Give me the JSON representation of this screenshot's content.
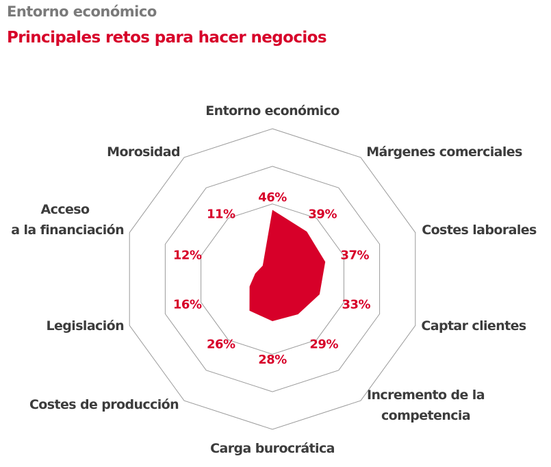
{
  "header": {
    "section": "Entorno económico",
    "title": "Principales retos para hacer negocios"
  },
  "colors": {
    "accent": "#d70029",
    "grid": "#9a9a9a",
    "label": "#3c3c3c",
    "section_title": "#7a7a7a"
  },
  "chart_data": {
    "type": "radar",
    "title": "Principales retos para hacer negocios",
    "subtitle": "Entorno económico",
    "unit": "%",
    "range": [
      0,
      100
    ],
    "grid_rings": [
      50,
      75,
      100
    ],
    "categories": [
      "Entorno económico",
      "Márgenes comerciales",
      "Costes laborales",
      "Captar clientes",
      "Incremento de la competencia",
      "Carga burocrática",
      "Costes de producción",
      "Legislación",
      "Acceso a la financiación",
      "Morosidad"
    ],
    "category_lines": [
      [
        "Entorno económico"
      ],
      [
        "Márgenes comerciales"
      ],
      [
        "Costes laborales"
      ],
      [
        "Captar clientes"
      ],
      [
        "Incremento de la",
        "competencia"
      ],
      [
        "Carga burocrática"
      ],
      [
        "Costes de producción"
      ],
      [
        "Legislación"
      ],
      [
        "Acceso",
        "a la financiación"
      ],
      [
        "Morosidad"
      ]
    ],
    "series": [
      {
        "name": "Principales retos",
        "values": [
          46,
          39,
          37,
          33,
          29,
          28,
          26,
          16,
          12,
          11
        ]
      }
    ],
    "value_labels": [
      "46%",
      "39%",
      "37%",
      "33%",
      "29%",
      "28%",
      "26%",
      "16%",
      "12%",
      "11%"
    ],
    "legend": "none"
  }
}
